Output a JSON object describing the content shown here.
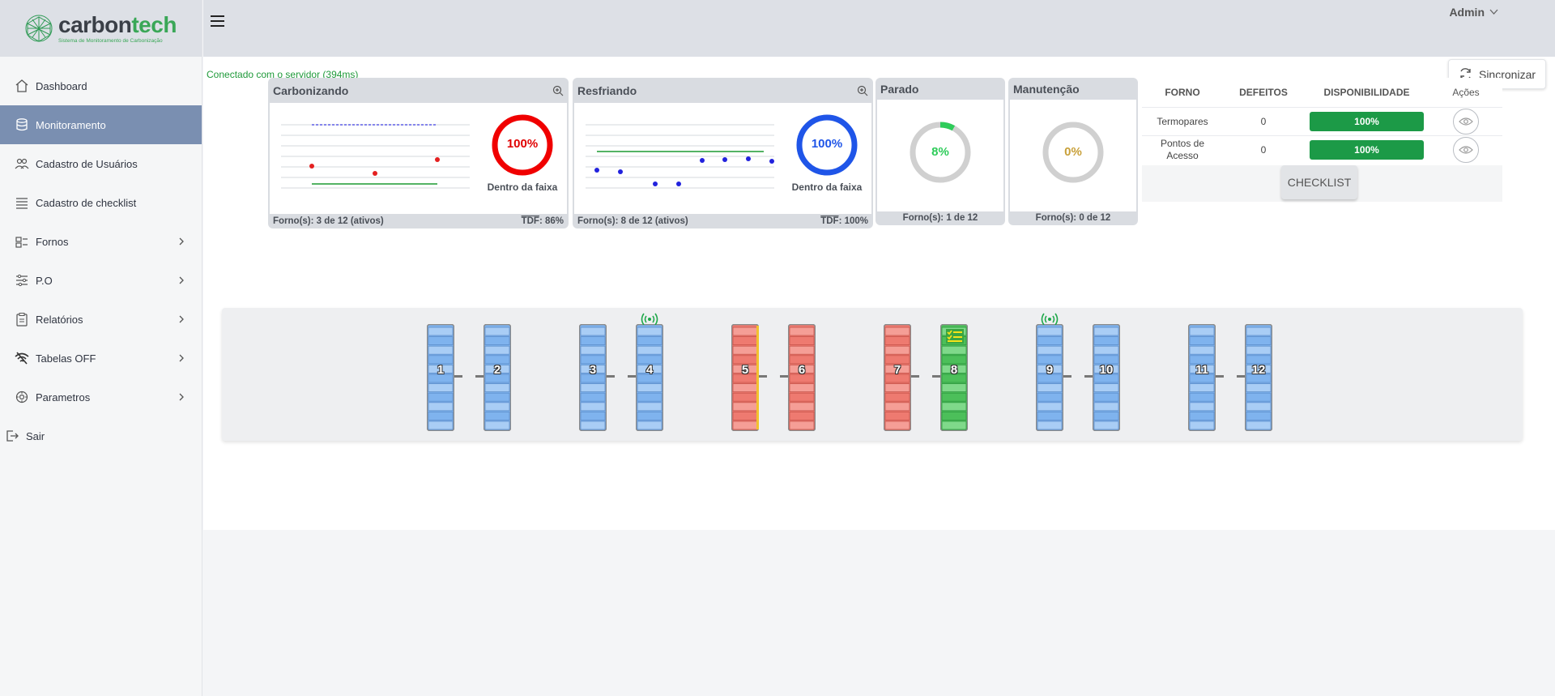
{
  "brand": {
    "name_part1": "carbon",
    "name_part2": "tech",
    "subtitle": "Sistema de Monitoramento de Carbonização"
  },
  "sidebar": {
    "items": [
      {
        "label": "Dashboard",
        "icon": "home-icon",
        "has_chevron": false,
        "active": false
      },
      {
        "label": "Monitoramento",
        "icon": "database-icon",
        "has_chevron": false,
        "active": true
      },
      {
        "label": "Cadastro de Usuários",
        "icon": "users-icon",
        "has_chevron": false,
        "active": false
      },
      {
        "label": "Cadastro de checklist",
        "icon": "list-icon",
        "has_chevron": false,
        "active": false
      },
      {
        "label": "Fornos",
        "icon": "furnace-icon",
        "has_chevron": true,
        "active": false
      },
      {
        "label": "P.O",
        "icon": "sliders-icon",
        "has_chevron": true,
        "active": false
      },
      {
        "label": "Relatórios",
        "icon": "clipboard-icon",
        "has_chevron": true,
        "active": false
      },
      {
        "label": "Tabelas OFF",
        "icon": "wifi-off-icon",
        "has_chevron": true,
        "active": false
      },
      {
        "label": "Parametros",
        "icon": "gear-icon",
        "has_chevron": true,
        "active": false
      },
      {
        "label": "Sair",
        "icon": "logout-icon",
        "has_chevron": false,
        "active": false
      }
    ]
  },
  "header": {
    "user": "Admin"
  },
  "status": {
    "text": "Conectado com o servidor  (394ms)"
  },
  "sync_button": {
    "label": "Sincronizar"
  },
  "cards": {
    "carbonizando": {
      "title": "Carbonizando",
      "percent": "100%",
      "caption": "Dentro da faixa",
      "fornos": "Forno(s): 3 de 12 (ativos)",
      "tdf_label": "TDF",
      "tdf_value": ": 86%",
      "ring_color": "#f00000",
      "text_color": "#e00000"
    },
    "resfriando": {
      "title": "Resfriando",
      "percent": "100%",
      "caption": "Dentro da faixa",
      "fornos": "Forno(s): 8 de 12 (ativos)",
      "tdf_label": "TDF",
      "tdf_value": ": 100%",
      "ring_color": "#1f55e8",
      "text_color": "#1f55e8"
    },
    "parado": {
      "title": "Parado",
      "percent": "8%",
      "fornos": "Forno(s): 1 de 12",
      "value": 0.08,
      "fill_color": "#2ecc5a",
      "text_color": "#2ecc5a"
    },
    "manutencao": {
      "title": "Manutenção",
      "percent": "0%",
      "fornos": "Forno(s): 0 de 12",
      "value": 0,
      "text_color": "#c8a03a"
    }
  },
  "table": {
    "headers": [
      "FORNO",
      "DEFEITOS",
      "DISPONIBILIDADE",
      "Ações"
    ],
    "rows": [
      {
        "forno": "Termopares",
        "defeitos": "0",
        "disponibilidade": "100%"
      },
      {
        "forno": "Pontos de Acesso",
        "defeitos": "0",
        "disponibilidade": "100%"
      }
    ],
    "checklist_label": "CHECKLIST"
  },
  "furnaces": [
    {
      "num": "1",
      "color": "blue",
      "signal": false,
      "checklist": false
    },
    {
      "num": "2",
      "color": "blue",
      "signal": false,
      "checklist": false
    },
    {
      "num": "3",
      "color": "blue",
      "signal": false,
      "checklist": false
    },
    {
      "num": "4",
      "color": "blue",
      "signal": true,
      "checklist": false
    },
    {
      "num": "5",
      "color": "red",
      "signal": false,
      "checklist": false,
      "side_bar": "#f2c12e"
    },
    {
      "num": "6",
      "color": "red",
      "signal": false,
      "checklist": false
    },
    {
      "num": "7",
      "color": "red",
      "signal": false,
      "checklist": false
    },
    {
      "num": "8",
      "color": "green",
      "signal": false,
      "checklist": true
    },
    {
      "num": "9",
      "color": "blue",
      "signal": true,
      "checklist": false
    },
    {
      "num": "10",
      "color": "blue",
      "signal": false,
      "checklist": false
    },
    {
      "num": "11",
      "color": "blue",
      "signal": false,
      "checklist": false
    },
    {
      "num": "12",
      "color": "blue",
      "signal": false,
      "checklist": false
    }
  ],
  "colors": {
    "accent_active": "#7a8fb1",
    "status_green": "#1f9a3a",
    "pill_green": "#1c9a47",
    "furnace_blue": "#7fb3ee",
    "furnace_red": "#ee7a70",
    "furnace_green": "#4cbf5a"
  }
}
